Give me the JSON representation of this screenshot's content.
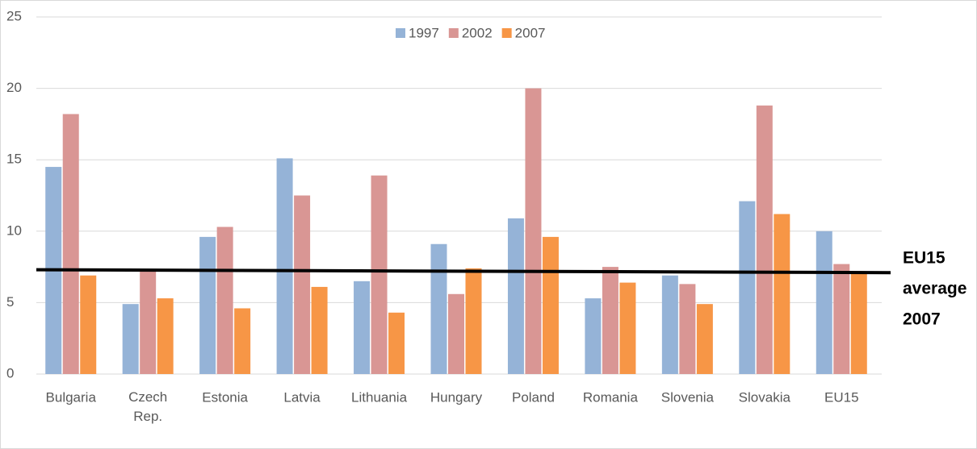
{
  "chart_data": {
    "type": "bar",
    "categories": [
      "Bulgaria",
      "Czech Rep.",
      "Estonia",
      "Latvia",
      "Lithuania",
      "Hungary",
      "Poland",
      "Romania",
      "Slovenia",
      "Slovakia",
      "EU15"
    ],
    "series": [
      {
        "name": "1997",
        "color": "#95b3d7",
        "values": [
          14.5,
          4.9,
          9.6,
          15.1,
          6.5,
          9.1,
          10.9,
          5.3,
          6.9,
          12.1,
          10.0
        ]
      },
      {
        "name": "2002",
        "color": "#d99694",
        "values": [
          18.2,
          7.2,
          10.3,
          12.5,
          13.9,
          5.6,
          20.0,
          7.5,
          6.3,
          18.8,
          7.7
        ]
      },
      {
        "name": "2007",
        "color": "#f79646",
        "values": [
          6.9,
          5.3,
          4.6,
          6.1,
          4.3,
          7.4,
          9.6,
          6.4,
          4.9,
          11.2,
          7.2
        ]
      }
    ],
    "ylim": [
      0,
      25
    ],
    "yticks": [
      0,
      5,
      10,
      15,
      20,
      25
    ],
    "grid": true,
    "legend": "top",
    "reference_line": {
      "values": [
        7.3,
        7.1
      ],
      "color": "#000000",
      "label": [
        "EU15",
        "average",
        "2007"
      ]
    }
  }
}
